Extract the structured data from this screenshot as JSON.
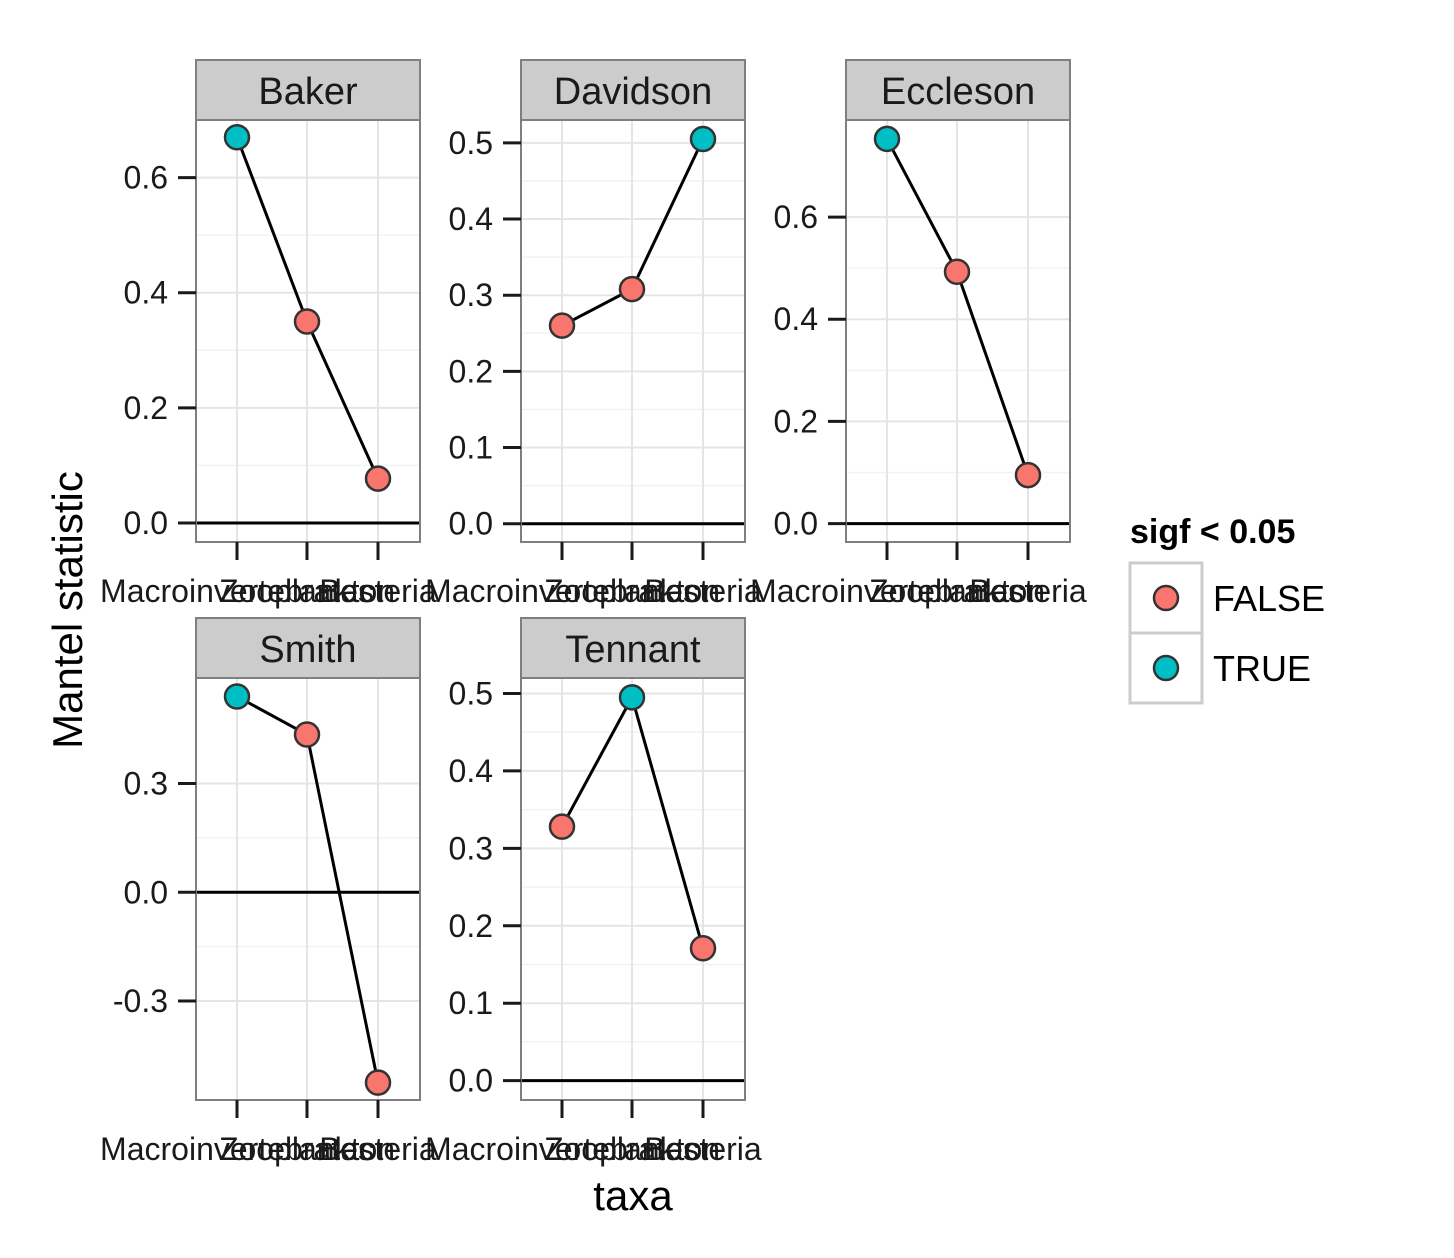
{
  "chart_data": {
    "type": "line",
    "xlabel": "taxa",
    "ylabel": "Mantel statistic",
    "categories": [
      "Macroinvertebrates",
      "Zooplankton",
      "Bacteria"
    ],
    "x_tick_labels": [
      "Macroinvertebrates",
      "Zooplankton",
      "Bacteria"
    ],
    "legend": {
      "title": "sigf < 0.05",
      "placement": "right",
      "entries": [
        {
          "label": "FALSE",
          "color": "#F8766D"
        },
        {
          "label": "TRUE",
          "color": "#00BFC4"
        }
      ]
    },
    "grid": true,
    "reference_line_y": 0,
    "facets": [
      {
        "name": "Baker",
        "ylim": [
          -0.033,
          0.7
        ],
        "yticks": [
          0.0,
          0.2,
          0.4,
          0.6
        ],
        "ytick_labels": [
          "0.0",
          "0.2",
          "0.4",
          "0.6"
        ],
        "values": [
          0.67,
          0.35,
          0.077
        ],
        "sig": [
          true,
          false,
          false
        ]
      },
      {
        "name": "Davidson",
        "ylim": [
          -0.024,
          0.53
        ],
        "yticks": [
          0.0,
          0.1,
          0.2,
          0.3,
          0.4,
          0.5
        ],
        "ytick_labels": [
          "0.0",
          "0.1",
          "0.2",
          "0.3",
          "0.4",
          "0.5"
        ],
        "values": [
          0.26,
          0.308,
          0.505
        ],
        "sig": [
          false,
          false,
          true
        ]
      },
      {
        "name": "Eccleson",
        "ylim": [
          -0.036,
          0.79
        ],
        "yticks": [
          0.0,
          0.2,
          0.4,
          0.6
        ],
        "ytick_labels": [
          "0.0",
          "0.2",
          "0.4",
          "0.6"
        ],
        "values": [
          0.753,
          0.493,
          0.095
        ],
        "sig": [
          true,
          false,
          false
        ]
      },
      {
        "name": "Smith",
        "ylim": [
          -0.573,
          0.591
        ],
        "yticks": [
          -0.3,
          0.0,
          0.3
        ],
        "ytick_labels": [
          "-0.3",
          "0.0",
          "0.3"
        ],
        "values": [
          0.54,
          0.435,
          -0.525
        ],
        "sig": [
          true,
          false,
          false
        ]
      },
      {
        "name": "Tennant",
        "ylim": [
          -0.025,
          0.52
        ],
        "yticks": [
          0.0,
          0.1,
          0.2,
          0.3,
          0.4,
          0.5
        ],
        "ytick_labels": [
          "0.0",
          "0.1",
          "0.2",
          "0.3",
          "0.4",
          "0.5"
        ],
        "values": [
          0.328,
          0.495,
          0.171
        ],
        "sig": [
          false,
          true,
          false
        ]
      }
    ]
  }
}
